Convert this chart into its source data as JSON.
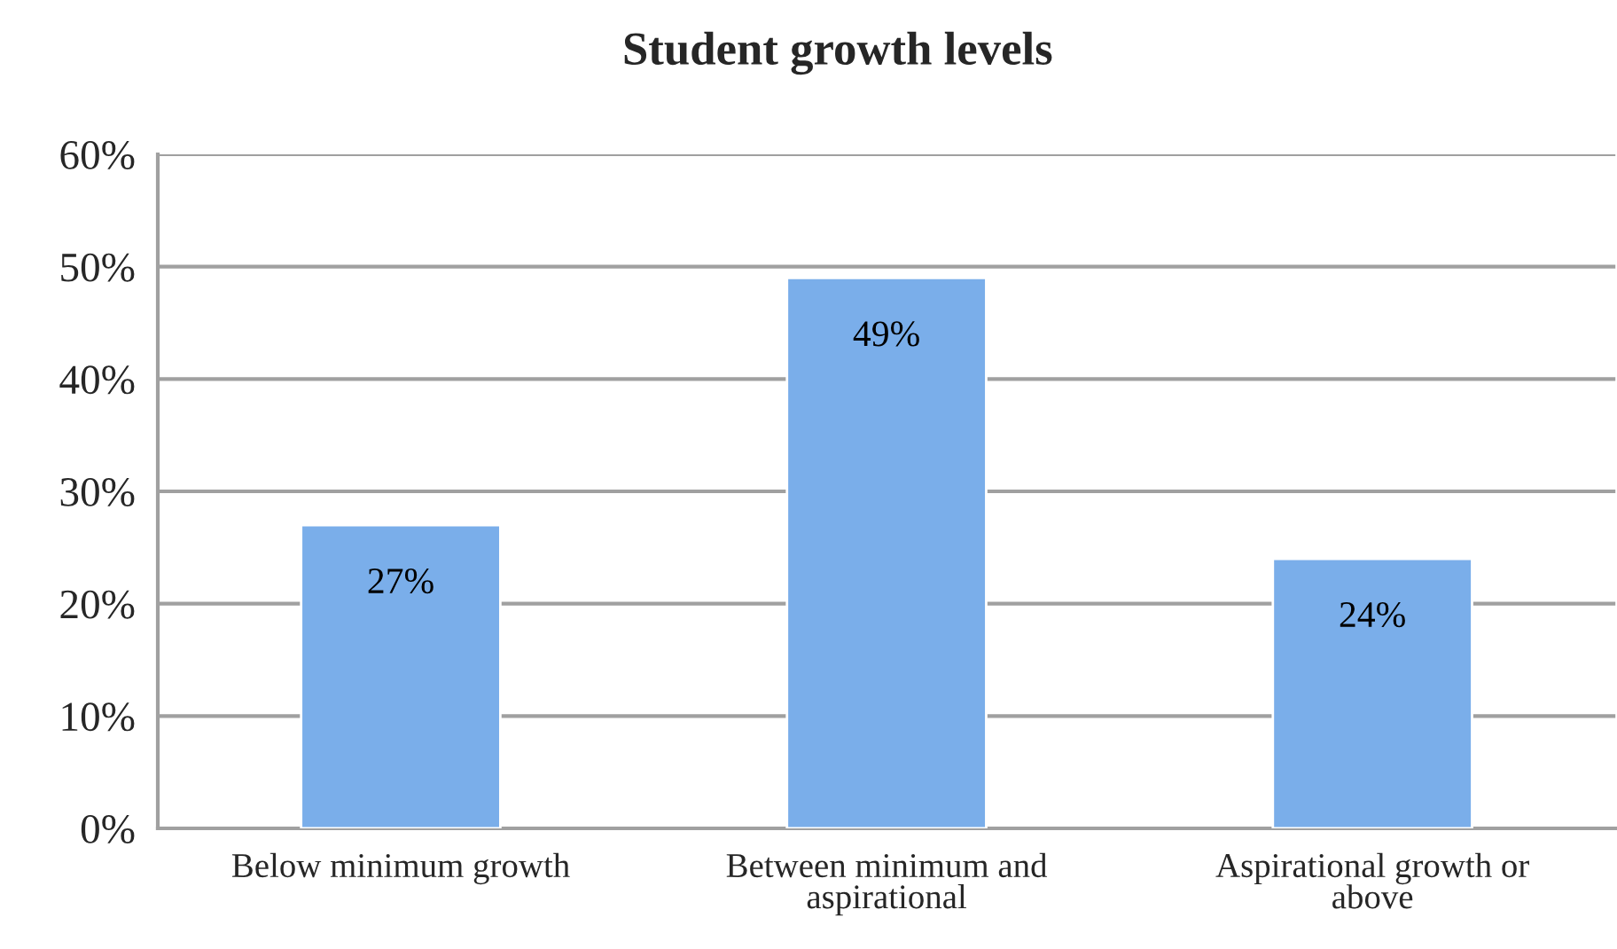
{
  "chart_data": {
    "type": "bar",
    "title": "Student growth levels",
    "categories": [
      "Below minimum growth",
      "Between minimum and\naspirational",
      "Aspirational growth or\nabove"
    ],
    "values": [
      27,
      49,
      24
    ],
    "value_labels": [
      "27%",
      "49%",
      "24%"
    ],
    "color": "#7aaeea",
    "ylim": [
      0,
      60
    ],
    "yticks": [
      {
        "value": 0,
        "label": "0%"
      },
      {
        "value": 10,
        "label": "10%"
      },
      {
        "value": 20,
        "label": "20%"
      },
      {
        "value": 30,
        "label": "30%"
      },
      {
        "value": 40,
        "label": "40%"
      },
      {
        "value": 50,
        "label": "50%"
      },
      {
        "value": 60,
        "label": "60%"
      }
    ],
    "grid": "y"
  }
}
